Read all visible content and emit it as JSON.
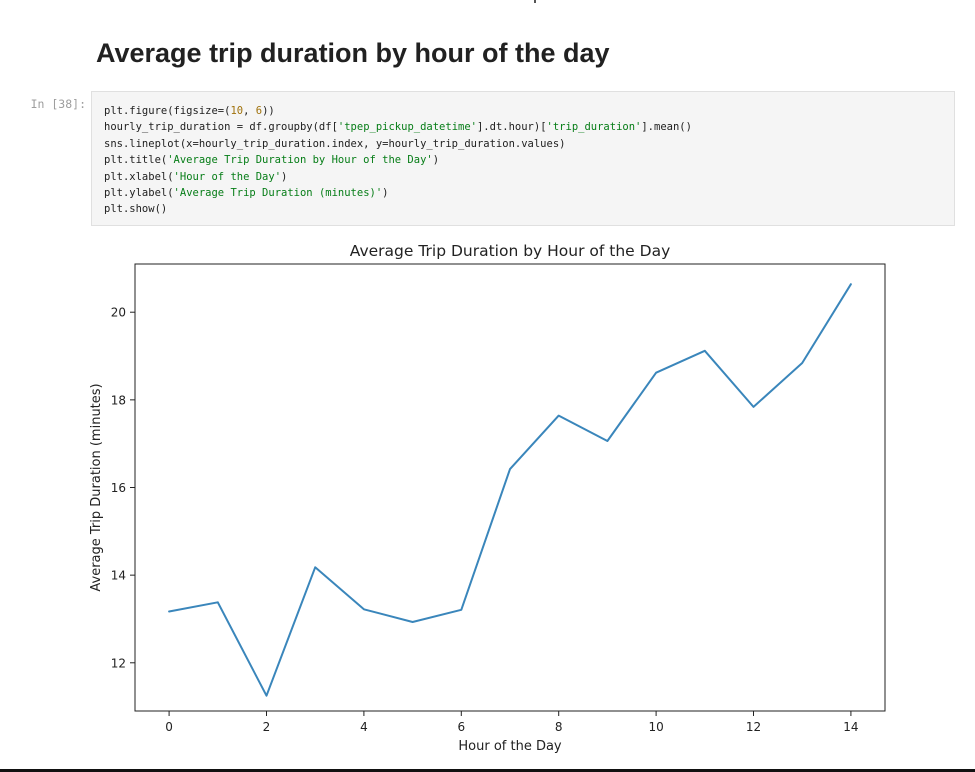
{
  "notebook": {
    "heading": "Average trip duration by hour of the day",
    "cell": {
      "prompt": "In [38]:",
      "code_lines": [
        [
          {
            "t": "plt.figure(figsize=("
          },
          {
            "t": "10",
            "c": "num"
          },
          {
            "t": ", "
          },
          {
            "t": "6",
            "c": "num"
          },
          {
            "t": "))"
          }
        ],
        [
          {
            "t": "hourly_trip_duration = df.groupby(df["
          },
          {
            "t": "'tpep_pickup_datetime'",
            "c": "str"
          },
          {
            "t": "].dt.hour)["
          },
          {
            "t": "'trip_duration'",
            "c": "str"
          },
          {
            "t": "].mean()"
          }
        ],
        [
          {
            "t": "sns.lineplot(x=hourly_trip_duration.index, y=hourly_trip_duration.values)"
          }
        ],
        [
          {
            "t": "plt.title("
          },
          {
            "t": "'Average Trip Duration by Hour of the Day'",
            "c": "str"
          },
          {
            "t": ")"
          }
        ],
        [
          {
            "t": "plt.xlabel("
          },
          {
            "t": "'Hour of the Day'",
            "c": "str"
          },
          {
            "t": ")"
          }
        ],
        [
          {
            "t": "plt.ylabel("
          },
          {
            "t": "'Average Trip Duration (minutes)'",
            "c": "str"
          },
          {
            "t": ")"
          }
        ],
        [
          {
            "t": "plt.show()"
          }
        ]
      ]
    }
  },
  "colors": {
    "line": "#3a86bb",
    "axes": "#222222",
    "code_string": "#067d17",
    "code_number": "#a0720c"
  },
  "chart_data": {
    "type": "line",
    "title": "Average Trip Duration by Hour of the Day",
    "xlabel": "Hour of the Day",
    "ylabel": "Average Trip Duration (minutes)",
    "x": [
      0,
      1,
      2,
      3,
      4,
      5,
      6,
      7,
      8,
      9,
      10,
      11,
      12,
      13,
      14
    ],
    "series": [
      {
        "values": [
          13.17,
          13.38,
          11.25,
          14.18,
          13.22,
          12.93,
          13.21,
          16.42,
          17.64,
          17.06,
          18.62,
          19.12,
          17.84,
          18.84,
          20.64
        ]
      }
    ],
    "xlim": [
      -0.7,
      14.7
    ],
    "ylim": [
      10.9,
      21.1
    ],
    "xticks": [
      0,
      2,
      4,
      6,
      8,
      10,
      12,
      14
    ],
    "yticks": [
      12,
      14,
      16,
      18,
      20
    ],
    "grid": false,
    "legend": "none"
  }
}
